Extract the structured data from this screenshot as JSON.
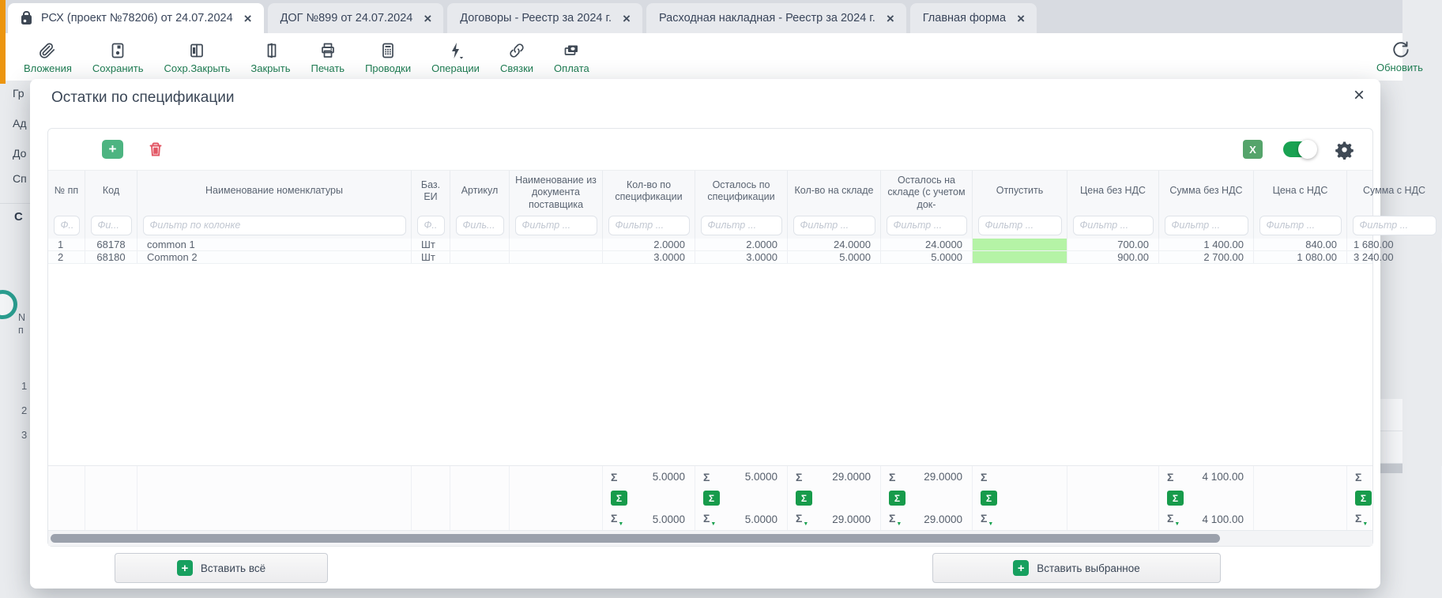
{
  "tabs": [
    {
      "label": "РСХ (проект №78206) от 24.07.2024",
      "active": true,
      "icon": "document-icon",
      "close": "×"
    },
    {
      "label": "ДОГ №899 от 24.07.2024",
      "active": false,
      "close": "×"
    },
    {
      "label": "Договоры - Реестр за 2024 г.",
      "active": false,
      "close": "×"
    },
    {
      "label": "Расходная накладная - Реестр за 2024 г.",
      "active": false,
      "close": "×"
    },
    {
      "label": "Главная форма",
      "active": false,
      "close": "×"
    }
  ],
  "toolbar": {
    "items": [
      {
        "label": "Вложения",
        "icon": "paperclip-icon",
        "name": "attachments"
      },
      {
        "label": "Сохранить",
        "icon": "save-icon",
        "name": "save"
      },
      {
        "label": "Сохр.Закрыть",
        "icon": "save-close-icon",
        "name": "save-and-close"
      },
      {
        "label": "Закрыть",
        "icon": "door-icon",
        "name": "close"
      },
      {
        "label": "Печать",
        "icon": "printer-icon",
        "name": "print"
      },
      {
        "label": "Проводки",
        "icon": "calculator-icon",
        "name": "postings"
      },
      {
        "label": "Операции",
        "icon": "lightning-icon",
        "name": "operations"
      },
      {
        "label": "Связки",
        "icon": "link-icon",
        "name": "links"
      },
      {
        "label": "Оплата",
        "icon": "payment-icon",
        "name": "payment"
      }
    ],
    "right_item": {
      "label": "Обновить",
      "icon": "refresh-icon",
      "name": "refresh"
    }
  },
  "background": {
    "field_labels": [
      "Гр",
      "Ад",
      "До",
      "Сп"
    ],
    "section_label": "С",
    "grid_header_fragment": "N\nп",
    "row_numbers": [
      "1",
      "2",
      "3"
    ]
  },
  "modal": {
    "title": "Остатки по спецификации",
    "close_glyph": "×",
    "grid": {
      "add_glyph": "+",
      "excel_glyph": "X",
      "sigma_glyph": "Σ",
      "funnel_glyph": "▼",
      "columns": [
        {
          "header": "№ пп",
          "filter": "Ф.."
        },
        {
          "header": "Код",
          "filter": "Фи..."
        },
        {
          "header": "Наименование номенклатуры",
          "filter": "Фильтр по колонке"
        },
        {
          "header": "Баз. ЕИ",
          "filter": "Ф.."
        },
        {
          "header": "Артикул",
          "filter": "Филь..."
        },
        {
          "header": "Наименование из документа поставщика",
          "filter": "Фильтр ..."
        },
        {
          "header": "Кол-во по спецификации",
          "filter": "Фильтр ..."
        },
        {
          "header": "Осталось по спецификации",
          "filter": "Фильтр ..."
        },
        {
          "header": "Кол-во на складе",
          "filter": "Фильтр ..."
        },
        {
          "header": "Осталось на складе (с учетом док-",
          "filter": "Фильтр ..."
        },
        {
          "header": "Отпустить",
          "filter": "Фильтр ..."
        },
        {
          "header": "Цена без НДС",
          "filter": "Фильтр ..."
        },
        {
          "header": "Сумма без НДС",
          "filter": "Фильтр ..."
        },
        {
          "header": "Цена с НДС",
          "filter": "Фильтр ..."
        },
        {
          "header": "Сумма с НДС",
          "filter": "Фильтр ..."
        }
      ],
      "rows": [
        {
          "cells": [
            "1",
            "68178",
            "common 1",
            "Шт",
            "",
            "",
            "2.0000",
            "2.0000",
            "24.0000",
            "24.0000",
            "",
            "700.00",
            "1 400.00",
            "840.00",
            "1 680.00"
          ],
          "editable_col": 10
        },
        {
          "cells": [
            "2",
            "68180",
            "Common 2",
            "Шт",
            "",
            "",
            "3.0000",
            "3.0000",
            "5.0000",
            "5.0000",
            "",
            "900.00",
            "2 700.00",
            "1 080.00",
            "3 240.00"
          ],
          "editable_col": 10
        }
      ],
      "footer_sums": {
        "6": {
          "sum": "5.0000",
          "filtered_sum": "5.0000"
        },
        "7": {
          "sum": "5.0000",
          "filtered_sum": "5.0000"
        },
        "8": {
          "sum": "29.0000",
          "filtered_sum": "29.0000"
        },
        "9": {
          "sum": "29.0000",
          "filtered_sum": "29.0000"
        },
        "10": {
          "sum": "",
          "filtered_sum": ""
        },
        "12": {
          "sum": "4 100.00",
          "filtered_sum": "4 100.00"
        },
        "14": {
          "sum": "",
          "filtered_sum": ""
        }
      }
    },
    "buttons": {
      "plus_glyph": "+",
      "insert_all": "Вставить всё",
      "insert_selected": "Вставить выбранное"
    }
  },
  "colors": {
    "toolbar_label_green": "#1e7c52",
    "add_button_green": "#4db481",
    "excel_button_green": "#55a46b",
    "sum_button_green": "#179b4b",
    "toggle_green": "#19a252",
    "editable_cell_green": "#b5f3a6",
    "trash_red": "#e25563",
    "tab_accent_orange": "#ec950f",
    "side_handle_teal": "#2a9d8f"
  }
}
